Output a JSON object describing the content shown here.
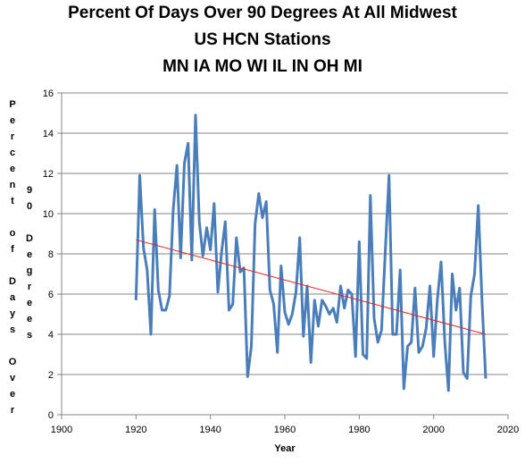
{
  "chart_data": {
    "type": "line",
    "title_lines": [
      "Percent Of Days Over 90 Degrees At All Midwest",
      "US HCN Stations",
      "MN IA MO WI IL IN OH MI"
    ],
    "xlabel": "Year",
    "ylabel_columns": [
      [
        "P",
        "e",
        "r",
        "c",
        "e",
        "n",
        "t",
        "",
        "o",
        "f",
        "",
        "D",
        "a",
        "y",
        "s",
        "",
        "O",
        "v",
        "e",
        "r"
      ],
      [
        "9",
        "0",
        "",
        "D",
        "e",
        "g",
        "r",
        "e",
        "e",
        "s"
      ]
    ],
    "xlim": [
      1900,
      2020
    ],
    "ylim": [
      0,
      16
    ],
    "xticks": [
      1900,
      1920,
      1940,
      1960,
      1980,
      2000,
      2020
    ],
    "yticks": [
      0,
      2,
      4,
      6,
      8,
      10,
      12,
      14,
      16
    ],
    "grid": "horizontal",
    "series": [
      {
        "color": "#4a7ebb",
        "x": [
          1920,
          1921,
          1922,
          1923,
          1924,
          1925,
          1926,
          1927,
          1928,
          1929,
          1930,
          1931,
          1932,
          1933,
          1934,
          1935,
          1936,
          1937,
          1938,
          1939,
          1940,
          1941,
          1942,
          1943,
          1944,
          1945,
          1946,
          1947,
          1948,
          1949,
          1950,
          1951,
          1952,
          1953,
          1954,
          1955,
          1956,
          1957,
          1958,
          1959,
          1960,
          1961,
          1962,
          1963,
          1964,
          1965,
          1966,
          1967,
          1968,
          1969,
          1970,
          1971,
          1972,
          1973,
          1974,
          1975,
          1976,
          1977,
          1978,
          1979,
          1980,
          1981,
          1982,
          1983,
          1984,
          1985,
          1986,
          1987,
          1988,
          1989,
          1990,
          1991,
          1992,
          1993,
          1994,
          1995,
          1996,
          1997,
          1998,
          1999,
          2000,
          2001,
          2002,
          2003,
          2004,
          2005,
          2006,
          2007,
          2008,
          2009,
          2010,
          2011,
          2012,
          2013,
          2014
        ],
        "y": [
          5.7,
          11.9,
          8.3,
          7.2,
          4.0,
          10.2,
          6.2,
          5.2,
          5.2,
          5.9,
          10.2,
          12.4,
          7.8,
          12.5,
          13.5,
          7.7,
          14.9,
          9.6,
          7.9,
          9.3,
          8.2,
          10.5,
          6.1,
          8.1,
          9.6,
          5.2,
          5.5,
          8.8,
          7.1,
          7.3,
          1.9,
          3.4,
          9.5,
          11.0,
          9.8,
          10.6,
          6.2,
          5.5,
          3.1,
          7.4,
          5.1,
          4.5,
          5.0,
          6.1,
          8.8,
          3.9,
          6.4,
          2.6,
          5.7,
          4.4,
          5.7,
          5.4,
          5.0,
          5.3,
          4.6,
          6.4,
          5.3,
          6.2,
          6.0,
          2.9,
          8.6,
          3.0,
          2.8,
          10.9,
          4.8,
          3.6,
          4.2,
          8.1,
          11.9,
          4.0,
          4.0,
          7.2,
          1.3,
          3.4,
          3.6,
          6.3,
          3.1,
          3.4,
          4.3,
          6.4,
          2.9,
          5.7,
          7.6,
          3.6,
          1.2,
          7.0,
          5.2,
          6.3,
          2.1,
          1.8,
          5.9,
          7.0,
          10.4,
          5.7,
          1.8
        ]
      },
      {
        "color": "#e82020",
        "x": [
          1920,
          2014
        ],
        "y": [
          8.7,
          4.0
        ]
      }
    ]
  }
}
